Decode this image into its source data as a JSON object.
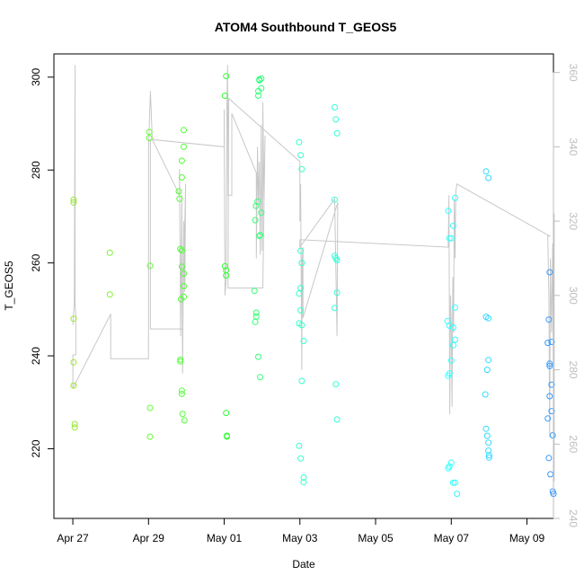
{
  "chart_data": {
    "type": "scatter",
    "title": "ATOM4 Southbound T_GEOS5",
    "xlabel": "Date",
    "ylabel": "T_GEOS5",
    "x_ticks": [
      {
        "day": 0,
        "label": "Apr 27"
      },
      {
        "day": 2,
        "label": "Apr 29"
      },
      {
        "day": 4,
        "label": "May 01"
      },
      {
        "day": 6,
        "label": "May 03"
      },
      {
        "day": 8,
        "label": "May 05"
      },
      {
        "day": 10,
        "label": "May 07"
      },
      {
        "day": 12,
        "label": "May 09"
      }
    ],
    "xlim": [
      -0.5,
      12.7
    ],
    "ylim": [
      205,
      305
    ],
    "y_ticks": [
      220,
      240,
      260,
      280,
      300
    ],
    "y2lim": [
      240,
      365
    ],
    "y2_ticks": [
      240,
      260,
      280,
      300,
      320,
      340,
      360
    ],
    "point_color_stops": [
      {
        "day": 0,
        "color": "#99e632"
      },
      {
        "day": 2,
        "color": "#66ff33"
      },
      {
        "day": 4,
        "color": "#33ff33"
      },
      {
        "day": 6,
        "color": "#33ffcc"
      },
      {
        "day": 10,
        "color": "#33ffff"
      },
      {
        "day": 12.6,
        "color": "#3399ff"
      }
    ],
    "line_color": "#c8c8c8",
    "scatter_points": [
      [
        0.02,
        273.6
      ],
      [
        0.02,
        273
      ],
      [
        0.02,
        248
      ],
      [
        0.02,
        238.6
      ],
      [
        0.02,
        233.6
      ],
      [
        0.05,
        225.3
      ],
      [
        0.05,
        224.6
      ],
      [
        0.98,
        262.2
      ],
      [
        0.98,
        253.2
      ],
      [
        2.02,
        288.2
      ],
      [
        2.02,
        286.9
      ],
      [
        2.04,
        259.4
      ],
      [
        2.04,
        228.8
      ],
      [
        2.04,
        222.6
      ],
      [
        2.8,
        275.4
      ],
      [
        2.82,
        273.8
      ],
      [
        2.84,
        263
      ],
      [
        2.84,
        239.2
      ],
      [
        2.84,
        238.8
      ],
      [
        2.86,
        252.2
      ],
      [
        2.88,
        282
      ],
      [
        2.88,
        278.4
      ],
      [
        2.88,
        262.7
      ],
      [
        2.88,
        259.2
      ],
      [
        2.88,
        232.5
      ],
      [
        2.88,
        231.8
      ],
      [
        2.9,
        227.5
      ],
      [
        2.93,
        288.6
      ],
      [
        2.93,
        285
      ],
      [
        2.93,
        257.7
      ],
      [
        2.93,
        255
      ],
      [
        2.93,
        252.7
      ],
      [
        2.95,
        226.1
      ],
      [
        4.02,
        296
      ],
      [
        4.05,
        300.2
      ],
      [
        4.02,
        259.3
      ],
      [
        4.05,
        258.4
      ],
      [
        4.05,
        257.3
      ],
      [
        4.05,
        227.7
      ],
      [
        4.07,
        222.6
      ],
      [
        4.07,
        222.8
      ],
      [
        4.8,
        254
      ],
      [
        4.82,
        247.3
      ],
      [
        4.85,
        248.5
      ],
      [
        4.85,
        249.3
      ],
      [
        4.82,
        269.2
      ],
      [
        4.84,
        272.3
      ],
      [
        4.88,
        273.2
      ],
      [
        4.9,
        296
      ],
      [
        4.9,
        297
      ],
      [
        4.93,
        299.3
      ],
      [
        4.93,
        299.5
      ],
      [
        4.98,
        299.7
      ],
      [
        4.98,
        297.6
      ],
      [
        4.9,
        239.8
      ],
      [
        4.95,
        235.4
      ],
      [
        4.93,
        265.8
      ],
      [
        4.95,
        266
      ],
      [
        4.98,
        270.8
      ],
      [
        5.98,
        286
      ],
      [
        6.02,
        283.2
      ],
      [
        6.05,
        280.2
      ],
      [
        6.02,
        262.6
      ],
      [
        5.98,
        253.4
      ],
      [
        6.02,
        254.6
      ],
      [
        6.05,
        260
      ],
      [
        6.02,
        249.8
      ],
      [
        5.98,
        247
      ],
      [
        6.05,
        246.6
      ],
      [
        6.1,
        243.2
      ],
      [
        6.05,
        234.6
      ],
      [
        5.98,
        220.6
      ],
      [
        6.02,
        217.9
      ],
      [
        6.1,
        213.8
      ],
      [
        6.1,
        212.8
      ],
      [
        6.92,
        293.5
      ],
      [
        6.95,
        290.9
      ],
      [
        6.98,
        287.9
      ],
      [
        6.92,
        273.6
      ],
      [
        6.92,
        261.5
      ],
      [
        6.95,
        261
      ],
      [
        6.98,
        260.6
      ],
      [
        6.98,
        253.6
      ],
      [
        6.92,
        250.3
      ],
      [
        6.95,
        233.9
      ],
      [
        6.98,
        226.3
      ],
      [
        9.92,
        271.2
      ],
      [
        9.95,
        265.3
      ],
      [
        10.0,
        265.3
      ],
      [
        10.05,
        268
      ],
      [
        10.1,
        274
      ],
      [
        10.1,
        250.4
      ],
      [
        9.9,
        247.5
      ],
      [
        9.95,
        246.5
      ],
      [
        10.05,
        242.3
      ],
      [
        10.1,
        243.5
      ],
      [
        10.05,
        246.1
      ],
      [
        10.0,
        239
      ],
      [
        9.95,
        236.2
      ],
      [
        9.92,
        235.7
      ],
      [
        9.95,
        216.2
      ],
      [
        9.92,
        215.8
      ],
      [
        10.0,
        217
      ],
      [
        10.05,
        212.7
      ],
      [
        10.1,
        212.7
      ],
      [
        10.15,
        210.3
      ],
      [
        10.92,
        279.7
      ],
      [
        10.98,
        278.3
      ],
      [
        10.92,
        248.4
      ],
      [
        10.98,
        248.1
      ],
      [
        10.98,
        239.1
      ],
      [
        10.95,
        237
      ],
      [
        10.9,
        231.7
      ],
      [
        10.92,
        224.3
      ],
      [
        10.95,
        222.8
      ],
      [
        10.98,
        221.3
      ],
      [
        10.98,
        219.6
      ],
      [
        11.0,
        218.6
      ],
      [
        11.0,
        218.1
      ],
      [
        12.6,
        258
      ],
      [
        12.58,
        247.8
      ],
      [
        12.55,
        242.8
      ],
      [
        12.65,
        243
      ],
      [
        12.6,
        238.3
      ],
      [
        12.6,
        237.8
      ],
      [
        12.65,
        233.8
      ],
      [
        12.6,
        231.3
      ],
      [
        12.65,
        228.1
      ],
      [
        12.55,
        226.5
      ],
      [
        12.68,
        222.9
      ],
      [
        12.58,
        218
      ],
      [
        12.62,
        214.5
      ],
      [
        12.68,
        210.8
      ],
      [
        12.7,
        210.3
      ]
    ],
    "line_path": [
      [
        0.0,
        292
      ],
      [
        0.04,
        298
      ],
      [
        0.06,
        362
      ],
      [
        0.06,
        297
      ],
      [
        0.08,
        295
      ],
      [
        0.08,
        284
      ],
      [
        0.0,
        284
      ],
      [
        0.0,
        275
      ],
      [
        1.0,
        295
      ],
      [
        1.0,
        283
      ],
      [
        2.0,
        283
      ],
      [
        2.0,
        339
      ],
      [
        2.05,
        355
      ],
      [
        2.1,
        342
      ],
      [
        2.82,
        327
      ],
      [
        2.82,
        334
      ],
      [
        2.85,
        289
      ],
      [
        2.88,
        327
      ],
      [
        2.9,
        279
      ],
      [
        2.93,
        320
      ],
      [
        2.96,
        301
      ],
      [
        2.98,
        330
      ],
      [
        2.9,
        291
      ],
      [
        2.05,
        291
      ],
      [
        2.05,
        342
      ],
      [
        4.0,
        340
      ],
      [
        4.0,
        350
      ],
      [
        4.02,
        300
      ],
      [
        4.05,
        304
      ],
      [
        4.07,
        350
      ],
      [
        4.09,
        362
      ],
      [
        4.1,
        327
      ],
      [
        4.2,
        327
      ],
      [
        4.2,
        349
      ],
      [
        4.85,
        333
      ],
      [
        4.85,
        310
      ],
      [
        4.88,
        340
      ],
      [
        4.9,
        325
      ],
      [
        4.93,
        336
      ],
      [
        4.95,
        311
      ],
      [
        4.98,
        346
      ],
      [
        5.0,
        312
      ],
      [
        5.02,
        330
      ],
      [
        5.02,
        352
      ],
      [
        5.05,
        326
      ],
      [
        5.08,
        343
      ],
      [
        5.02,
        302
      ],
      [
        4.1,
        302
      ],
      [
        4.12,
        353
      ],
      [
        6.0,
        336
      ],
      [
        6.0,
        320
      ],
      [
        6.02,
        330
      ],
      [
        6.05,
        280
      ],
      [
        6.06,
        310
      ],
      [
        6.08,
        313
      ],
      [
        6.08,
        294
      ],
      [
        7.0,
        325
      ],
      [
        6.98,
        289
      ],
      [
        6.92,
        326
      ],
      [
        6.0,
        313
      ],
      [
        6.0,
        315
      ],
      [
        9.92,
        313
      ],
      [
        9.94,
        327
      ],
      [
        9.96,
        268
      ],
      [
        9.98,
        300
      ],
      [
        10.0,
        292
      ],
      [
        10.02,
        270
      ],
      [
        10.04,
        305
      ],
      [
        10.06,
        290
      ],
      [
        10.08,
        326
      ],
      [
        10.1,
        310
      ],
      [
        10.12,
        328
      ],
      [
        10.15,
        330
      ],
      [
        12.6,
        316
      ],
      [
        12.55,
        316
      ],
      [
        12.58,
        300
      ],
      [
        12.6,
        262
      ],
      [
        12.62,
        310
      ],
      [
        12.65,
        290
      ],
      [
        12.68,
        314
      ],
      [
        12.7,
        275
      ],
      [
        12.72,
        322
      ],
      [
        12.72,
        250
      ]
    ]
  }
}
